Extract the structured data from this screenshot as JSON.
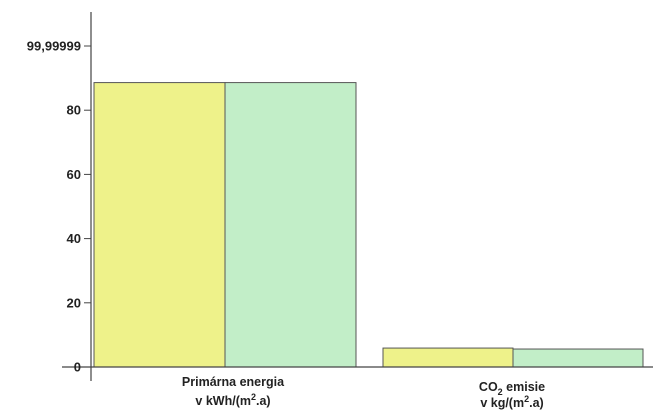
{
  "chart_data": {
    "type": "bar",
    "categories": [
      {
        "line1": "Primárna energia",
        "line2_prefix": "v kWh/(m",
        "line2_sup": "2",
        "line2_suffix": ".a)"
      },
      {
        "line1_prefix": "CO",
        "line1_sub": "2",
        "line1_suffix": " emisie",
        "line2_prefix": "v kg/(m",
        "line2_sup": "2",
        "line2_suffix": ".a)"
      }
    ],
    "series": [
      {
        "color": "#eef28a",
        "values": [
          88.6,
          5.9
        ]
      },
      {
        "color": "#c2eec8",
        "values": [
          88.6,
          5.6
        ]
      }
    ],
    "ylim": [
      0,
      99.99999
    ],
    "yticks": [
      {
        "value": 0,
        "label": "0"
      },
      {
        "value": 20,
        "label": "20"
      },
      {
        "value": 40,
        "label": "40"
      },
      {
        "value": 60,
        "label": "60"
      },
      {
        "value": 80,
        "label": "80"
      },
      {
        "value": 99.99999,
        "label": "99,99999"
      }
    ],
    "grid": false,
    "legend": "none"
  }
}
